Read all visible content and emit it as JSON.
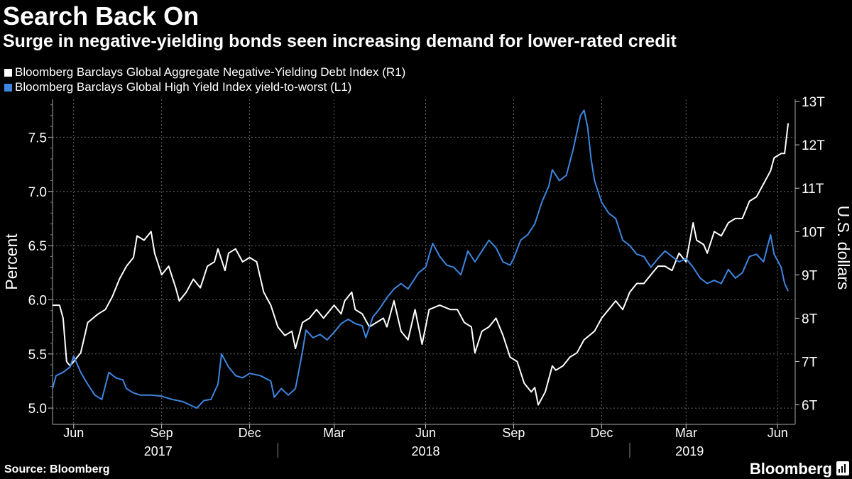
{
  "header": {
    "title": "Search Back On",
    "subtitle": "Surge in negative-yielding bonds seen increasing demand for lower-rated credit"
  },
  "legend": [
    {
      "label": "Bloomberg Barclays Global Aggregate Negative-Yielding Debt Index (R1)",
      "color": "#ffffff"
    },
    {
      "label": "Bloomberg Barclays Global High Yield Index yield-to-worst (L1)",
      "color": "#3d86e0"
    }
  ],
  "footer": {
    "source": "Source: Bloomberg",
    "brand": "Bloomberg",
    "brand_icon": "bloomberg-chart-icon"
  },
  "chart_data": {
    "type": "line",
    "dual_axis": true,
    "grid": true,
    "x_range": [
      2017.36,
      2019.47
    ],
    "x_ticks": [
      {
        "label": "Jun",
        "t": 2017.42
      },
      {
        "label": "Sep",
        "t": 2017.67
      },
      {
        "label": "Dec",
        "t": 2017.92
      },
      {
        "label": "Mar",
        "t": 2018.16
      },
      {
        "label": "Jun",
        "t": 2018.42
      },
      {
        "label": "Sep",
        "t": 2018.67
      },
      {
        "label": "Dec",
        "t": 2018.92
      },
      {
        "label": "Mar",
        "t": 2019.16
      },
      {
        "label": "Jun",
        "t": 2019.42
      }
    ],
    "year_labels": [
      {
        "label": "2017",
        "t": 2017.66
      },
      {
        "label": "2018",
        "t": 2018.42
      },
      {
        "label": "2019",
        "t": 2019.17
      }
    ],
    "year_separators": [
      2018.0,
      2019.0
    ],
    "left_axis": {
      "label": "Percent",
      "ylim": [
        4.85,
        7.85
      ],
      "ticks": [
        5.0,
        5.5,
        6.0,
        6.5,
        7.0,
        7.5
      ],
      "tick_labels": [
        "5.0",
        "5.5",
        "6.0",
        "6.5",
        "7.0",
        "7.5"
      ]
    },
    "right_axis": {
      "label": "U.S. dollars",
      "ylim": [
        5.55,
        13.05
      ],
      "ticks": [
        6,
        7,
        8,
        9,
        10,
        11,
        12,
        13
      ],
      "tick_labels": [
        "6T",
        "7T",
        "8T",
        "9T",
        "10T",
        "11T",
        "12T",
        "13T"
      ]
    },
    "series": [
      {
        "name": "Bloomberg Barclays Global Aggregate Negative-Yielding Debt Index (R1)",
        "axis": "right",
        "color": "#ffffff",
        "unit": "trillion USD",
        "points": [
          [
            2017.36,
            8.3
          ],
          [
            2017.38,
            8.3
          ],
          [
            2017.39,
            8.0
          ],
          [
            2017.4,
            7.0
          ],
          [
            2017.41,
            6.9
          ],
          [
            2017.44,
            7.2
          ],
          [
            2017.46,
            7.9
          ],
          [
            2017.49,
            8.1
          ],
          [
            2017.51,
            8.2
          ],
          [
            2017.53,
            8.5
          ],
          [
            2017.55,
            8.9
          ],
          [
            2017.57,
            9.2
          ],
          [
            2017.59,
            9.4
          ],
          [
            2017.6,
            9.9
          ],
          [
            2017.62,
            9.8
          ],
          [
            2017.64,
            10.0
          ],
          [
            2017.65,
            9.5
          ],
          [
            2017.67,
            9.0
          ],
          [
            2017.69,
            9.2
          ],
          [
            2017.71,
            8.7
          ],
          [
            2017.72,
            8.4
          ],
          [
            2017.74,
            8.6
          ],
          [
            2017.76,
            8.9
          ],
          [
            2017.78,
            8.7
          ],
          [
            2017.8,
            9.2
          ],
          [
            2017.82,
            9.3
          ],
          [
            2017.83,
            9.6
          ],
          [
            2017.85,
            9.1
          ],
          [
            2017.86,
            9.5
          ],
          [
            2017.88,
            9.6
          ],
          [
            2017.9,
            9.3
          ],
          [
            2017.92,
            9.4
          ],
          [
            2017.94,
            9.3
          ],
          [
            2017.96,
            8.6
          ],
          [
            2017.98,
            8.3
          ],
          [
            2018.0,
            7.8
          ],
          [
            2018.02,
            7.6
          ],
          [
            2018.04,
            7.7
          ],
          [
            2018.05,
            7.3
          ],
          [
            2018.07,
            7.9
          ],
          [
            2018.09,
            8.0
          ],
          [
            2018.11,
            8.2
          ],
          [
            2018.13,
            8.0
          ],
          [
            2018.16,
            8.3
          ],
          [
            2018.18,
            8.1
          ],
          [
            2018.19,
            8.4
          ],
          [
            2018.21,
            8.6
          ],
          [
            2018.22,
            8.2
          ],
          [
            2018.24,
            8.1
          ],
          [
            2018.26,
            7.8
          ],
          [
            2018.28,
            7.9
          ],
          [
            2018.3,
            8.0
          ],
          [
            2018.31,
            7.8
          ],
          [
            2018.33,
            8.4
          ],
          [
            2018.35,
            7.7
          ],
          [
            2018.37,
            7.5
          ],
          [
            2018.39,
            8.2
          ],
          [
            2018.41,
            7.4
          ],
          [
            2018.43,
            8.2
          ],
          [
            2018.46,
            8.3
          ],
          [
            2018.49,
            8.2
          ],
          [
            2018.51,
            8.2
          ],
          [
            2018.53,
            7.9
          ],
          [
            2018.55,
            7.8
          ],
          [
            2018.56,
            7.2
          ],
          [
            2018.58,
            7.7
          ],
          [
            2018.6,
            7.8
          ],
          [
            2018.62,
            8.0
          ],
          [
            2018.64,
            7.6
          ],
          [
            2018.66,
            7.1
          ],
          [
            2018.68,
            7.0
          ],
          [
            2018.7,
            6.5
          ],
          [
            2018.72,
            6.3
          ],
          [
            2018.73,
            6.4
          ],
          [
            2018.74,
            6.0
          ],
          [
            2018.76,
            6.3
          ],
          [
            2018.78,
            6.9
          ],
          [
            2018.79,
            6.8
          ],
          [
            2018.81,
            6.9
          ],
          [
            2018.83,
            7.1
          ],
          [
            2018.85,
            7.2
          ],
          [
            2018.87,
            7.5
          ],
          [
            2018.9,
            7.7
          ],
          [
            2018.92,
            8.0
          ],
          [
            2018.94,
            8.2
          ],
          [
            2018.96,
            8.4
          ],
          [
            2018.98,
            8.2
          ],
          [
            2019.0,
            8.6
          ],
          [
            2019.02,
            8.8
          ],
          [
            2019.04,
            8.8
          ],
          [
            2019.06,
            9.0
          ],
          [
            2019.08,
            9.2
          ],
          [
            2019.1,
            9.2
          ],
          [
            2019.12,
            9.1
          ],
          [
            2019.14,
            9.5
          ],
          [
            2019.16,
            9.3
          ],
          [
            2019.18,
            10.2
          ],
          [
            2019.19,
            9.8
          ],
          [
            2019.21,
            9.7
          ],
          [
            2019.22,
            9.5
          ],
          [
            2019.24,
            10.0
          ],
          [
            2019.26,
            9.9
          ],
          [
            2019.28,
            10.2
          ],
          [
            2019.3,
            10.3
          ],
          [
            2019.32,
            10.3
          ],
          [
            2019.34,
            10.7
          ],
          [
            2019.36,
            10.8
          ],
          [
            2019.38,
            11.1
          ],
          [
            2019.4,
            11.4
          ],
          [
            2019.41,
            11.7
          ],
          [
            2019.43,
            11.8
          ],
          [
            2019.44,
            11.8
          ],
          [
            2019.45,
            12.5
          ]
        ]
      },
      {
        "name": "Bloomberg Barclays Global High Yield Index yield-to-worst (L1)",
        "axis": "left",
        "color": "#3d86e0",
        "unit": "percent",
        "points": [
          [
            2017.36,
            5.18
          ],
          [
            2017.37,
            5.3
          ],
          [
            2017.39,
            5.33
          ],
          [
            2017.41,
            5.38
          ],
          [
            2017.42,
            5.48
          ],
          [
            2017.44,
            5.33
          ],
          [
            2017.46,
            5.22
          ],
          [
            2017.48,
            5.12
          ],
          [
            2017.5,
            5.08
          ],
          [
            2017.52,
            5.33
          ],
          [
            2017.54,
            5.28
          ],
          [
            2017.56,
            5.26
          ],
          [
            2017.57,
            5.18
          ],
          [
            2017.59,
            5.14
          ],
          [
            2017.61,
            5.12
          ],
          [
            2017.64,
            5.12
          ],
          [
            2017.67,
            5.11
          ],
          [
            2017.7,
            5.08
          ],
          [
            2017.73,
            5.06
          ],
          [
            2017.75,
            5.03
          ],
          [
            2017.77,
            5.0
          ],
          [
            2017.79,
            5.07
          ],
          [
            2017.81,
            5.08
          ],
          [
            2017.83,
            5.22
          ],
          [
            2017.84,
            5.5
          ],
          [
            2017.86,
            5.38
          ],
          [
            2017.88,
            5.3
          ],
          [
            2017.9,
            5.28
          ],
          [
            2017.92,
            5.32
          ],
          [
            2017.95,
            5.3
          ],
          [
            2017.98,
            5.25
          ],
          [
            2017.99,
            5.1
          ],
          [
            2018.01,
            5.18
          ],
          [
            2018.03,
            5.12
          ],
          [
            2018.05,
            5.18
          ],
          [
            2018.07,
            5.52
          ],
          [
            2018.08,
            5.72
          ],
          [
            2018.1,
            5.65
          ],
          [
            2018.12,
            5.68
          ],
          [
            2018.14,
            5.63
          ],
          [
            2018.16,
            5.7
          ],
          [
            2018.18,
            5.78
          ],
          [
            2018.2,
            5.82
          ],
          [
            2018.22,
            5.78
          ],
          [
            2018.24,
            5.76
          ],
          [
            2018.25,
            5.65
          ],
          [
            2018.27,
            5.84
          ],
          [
            2018.29,
            5.92
          ],
          [
            2018.31,
            6.02
          ],
          [
            2018.33,
            6.1
          ],
          [
            2018.35,
            6.15
          ],
          [
            2018.37,
            6.1
          ],
          [
            2018.39,
            6.2
          ],
          [
            2018.4,
            6.25
          ],
          [
            2018.42,
            6.3
          ],
          [
            2018.44,
            6.52
          ],
          [
            2018.46,
            6.4
          ],
          [
            2018.48,
            6.32
          ],
          [
            2018.5,
            6.3
          ],
          [
            2018.52,
            6.23
          ],
          [
            2018.54,
            6.45
          ],
          [
            2018.56,
            6.35
          ],
          [
            2018.58,
            6.45
          ],
          [
            2018.6,
            6.55
          ],
          [
            2018.62,
            6.48
          ],
          [
            2018.64,
            6.35
          ],
          [
            2018.66,
            6.32
          ],
          [
            2018.67,
            6.38
          ],
          [
            2018.69,
            6.55
          ],
          [
            2018.71,
            6.6
          ],
          [
            2018.73,
            6.7
          ],
          [
            2018.75,
            6.9
          ],
          [
            2018.77,
            7.05
          ],
          [
            2018.78,
            7.2
          ],
          [
            2018.8,
            7.1
          ],
          [
            2018.82,
            7.15
          ],
          [
            2018.84,
            7.4
          ],
          [
            2018.86,
            7.7
          ],
          [
            2018.87,
            7.75
          ],
          [
            2018.88,
            7.6
          ],
          [
            2018.89,
            7.3
          ],
          [
            2018.9,
            7.1
          ],
          [
            2018.92,
            6.9
          ],
          [
            2018.94,
            6.8
          ],
          [
            2018.96,
            6.75
          ],
          [
            2018.98,
            6.55
          ],
          [
            2019.0,
            6.5
          ],
          [
            2019.02,
            6.42
          ],
          [
            2019.04,
            6.4
          ],
          [
            2019.06,
            6.3
          ],
          [
            2019.08,
            6.38
          ],
          [
            2019.1,
            6.45
          ],
          [
            2019.12,
            6.4
          ],
          [
            2019.14,
            6.35
          ],
          [
            2019.16,
            6.38
          ],
          [
            2019.18,
            6.3
          ],
          [
            2019.2,
            6.2
          ],
          [
            2019.22,
            6.15
          ],
          [
            2019.24,
            6.18
          ],
          [
            2019.26,
            6.15
          ],
          [
            2019.28,
            6.28
          ],
          [
            2019.3,
            6.2
          ],
          [
            2019.32,
            6.25
          ],
          [
            2019.34,
            6.4
          ],
          [
            2019.36,
            6.42
          ],
          [
            2019.38,
            6.35
          ],
          [
            2019.4,
            6.6
          ],
          [
            2019.41,
            6.42
          ],
          [
            2019.43,
            6.3
          ],
          [
            2019.44,
            6.15
          ],
          [
            2019.45,
            6.08
          ]
        ]
      }
    ]
  }
}
